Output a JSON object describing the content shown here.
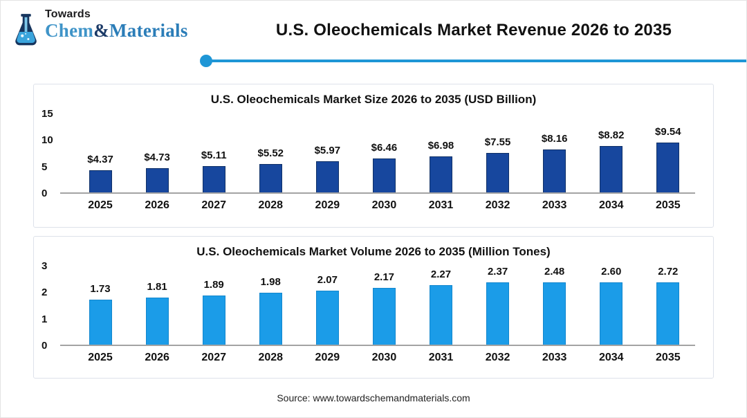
{
  "header": {
    "logo_top": "Towards",
    "logo_chem": "Chem",
    "logo_amp": "&",
    "logo_materials": "Materials",
    "title": "U.S. Oleochemicals Market Revenue 2026 to 2035",
    "accent_color": "#1e96d6"
  },
  "chart_data": [
    {
      "type": "bar",
      "title": "U.S. Oleochemicals Market Size 2026 to 2035 (USD Billion)",
      "categories": [
        "2025",
        "2026",
        "2027",
        "2028",
        "2029",
        "2030",
        "2031",
        "2032",
        "2033",
        "2034",
        "2035"
      ],
      "values": [
        4.37,
        4.73,
        5.11,
        5.52,
        5.97,
        6.46,
        6.98,
        7.55,
        8.16,
        8.82,
        9.54
      ],
      "labels": [
        "$4.37",
        "$4.73",
        "$5.11",
        "$5.52",
        "$5.97",
        "$6.46",
        "$6.98",
        "$7.55",
        "$8.16",
        "$8.82",
        "$9.54"
      ],
      "yticks": [
        0,
        5,
        10,
        15
      ],
      "ylim": [
        0,
        15
      ],
      "xlabel": "",
      "ylabel": "",
      "grid": false,
      "legend": "none",
      "bar_color": "#17479e",
      "bar_border_color": "#0f3066"
    },
    {
      "type": "bar",
      "title": "U.S. Oleochemicals Market Volume 2026 to 2035 (Million Tones)",
      "categories": [
        "2025",
        "2026",
        "2027",
        "2028",
        "2029",
        "2030",
        "2031",
        "2032",
        "2033",
        "2034",
        "2035"
      ],
      "values": [
        1.73,
        1.81,
        1.89,
        1.98,
        2.07,
        2.17,
        2.27,
        2.37,
        2.48,
        2.6,
        2.72
      ],
      "labels": [
        "1.73",
        "1.81",
        "1.89",
        "1.98",
        "2.07",
        "2.17",
        "2.27",
        "2.37",
        "2.48",
        "2.60",
        "2.72"
      ],
      "yticks": [
        0,
        1,
        2,
        3
      ],
      "ylim": [
        0,
        3
      ],
      "xlabel": "",
      "ylabel": "",
      "grid": false,
      "legend": "none",
      "bar_color": "#1b9ce8",
      "bar_border_color": "#1286cd"
    }
  ],
  "footer": {
    "source": "Source: www.towardschemandmaterials.com"
  }
}
